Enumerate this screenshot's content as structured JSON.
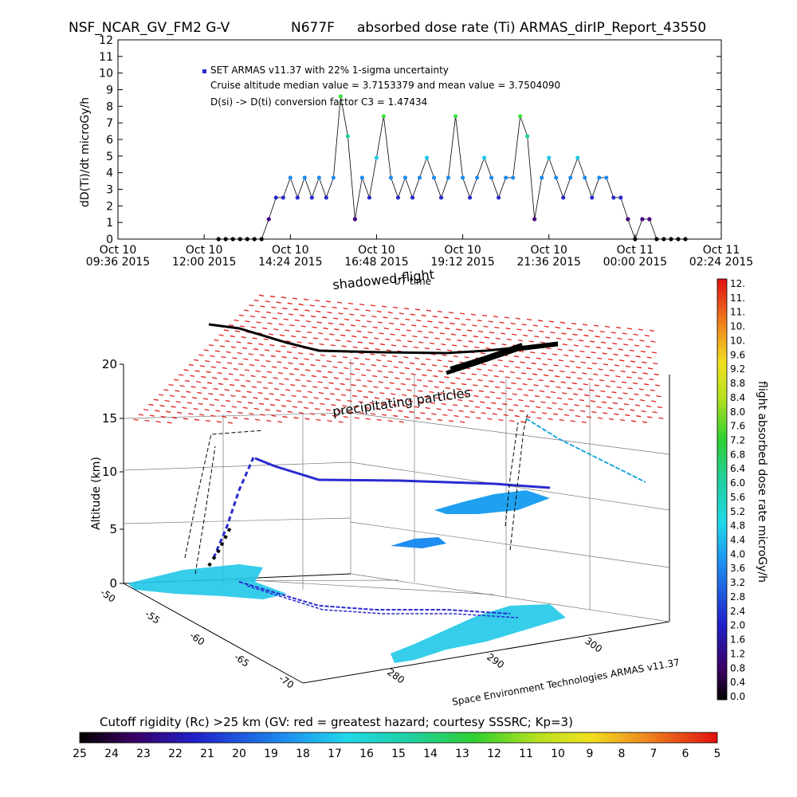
{
  "header": {
    "left": "NSF_NCAR_GV_FM2 G-V",
    "aircraft": "N677F",
    "center": "absorbed dose rate (Ti) ARMAS_dirIP_Report_43550"
  },
  "chart_data": [
    {
      "type": "scatter",
      "name": "dose-rate-timeseries",
      "ylabel": "dD(Ti)/dt microGy/h",
      "xlabel": "UT time",
      "ylim": [
        0,
        12
      ],
      "yticks": [
        "0",
        "1",
        "2",
        "3",
        "4",
        "5",
        "6",
        "7",
        "8",
        "9",
        "10",
        "11",
        "12"
      ],
      "xticks": [
        {
          "d": "Oct 10",
          "t": "09:36 2015"
        },
        {
          "d": "Oct 10",
          "t": "12:00 2015"
        },
        {
          "d": "Oct 10",
          "t": "14:24 2015"
        },
        {
          "d": "Oct 10",
          "t": "16:48 2015"
        },
        {
          "d": "Oct 10",
          "t": "19:12 2015"
        },
        {
          "d": "Oct 10",
          "t": "21:36 2015"
        },
        {
          "d": "Oct 11",
          "t": "00:00 2015"
        },
        {
          "d": "Oct 11",
          "t": "02:24 2015"
        }
      ],
      "legend": "SET ARMAS v11.37 with 22% 1-sigma uncertainty",
      "annotations": [
        "Cruise altitude median value = 3.7153379 and mean value = 3.7504090",
        "D(si) -> D(ti) conversion factor C3 = 1.47434"
      ],
      "x_hours_from_start": [
        2.8,
        3.0,
        3.2,
        3.4,
        3.6,
        3.8,
        4.0,
        4.2,
        4.4,
        4.6,
        4.8,
        5.0,
        5.2,
        5.4,
        5.6,
        5.8,
        6.0,
        6.2,
        6.4,
        6.6,
        6.8,
        7.0,
        7.2,
        7.4,
        7.6,
        7.8,
        8.0,
        8.2,
        8.4,
        8.6,
        8.8,
        9.0,
        9.2,
        9.4,
        9.6,
        9.8,
        10.0,
        10.2,
        10.4,
        10.6,
        10.8,
        11.0,
        11.2,
        11.4,
        11.6,
        11.8,
        12.0,
        12.2,
        12.4,
        12.6,
        12.8,
        13.0,
        13.2,
        13.4,
        13.6,
        13.8,
        14.0,
        14.2,
        14.4,
        14.6,
        14.8,
        15.0,
        15.2,
        15.4,
        15.6,
        15.8
      ],
      "values": [
        0,
        0,
        0,
        0,
        0,
        0,
        0,
        1.2,
        2.5,
        2.5,
        3.7,
        2.5,
        3.7,
        2.5,
        3.7,
        2.5,
        3.7,
        8.6,
        6.2,
        1.2,
        3.7,
        2.5,
        4.9,
        7.4,
        3.7,
        2.5,
        3.7,
        2.5,
        3.7,
        4.9,
        3.7,
        2.5,
        3.7,
        7.4,
        3.7,
        2.5,
        3.7,
        4.9,
        3.7,
        2.5,
        3.7,
        3.7,
        7.4,
        6.2,
        1.2,
        3.7,
        4.9,
        3.7,
        2.5,
        3.7,
        4.9,
        3.7,
        2.5,
        3.7,
        3.7,
        2.5,
        2.5,
        1.2,
        0,
        1.2,
        1.2,
        0,
        0,
        0,
        0,
        0
      ]
    },
    {
      "type": "3d-trajectory",
      "name": "flight-track-3d",
      "zlabel": "Altitude (km)",
      "zticks": [
        "0",
        "5",
        "10",
        "15",
        "20"
      ],
      "lat_ticks": [
        "-50",
        "-55",
        "-60",
        "-65",
        "-70"
      ],
      "lon_ticks": [
        "280",
        "290",
        "300"
      ],
      "overlay_labels": [
        "shadowed-flight",
        "precipitating particles"
      ],
      "credit": "Space Environment Technologies ARMAS v11.37",
      "colorbar": {
        "title": "flight absorbed dose rate microGy/h",
        "ticks": [
          "12.",
          "11.",
          "11.",
          "10.",
          "10.",
          "9.6",
          "9.2",
          "8.8",
          "8.4",
          "8.0",
          "7.6",
          "7.2",
          "6.8",
          "6.4",
          "6.0",
          "5.6",
          "5.2",
          "4.8",
          "4.4",
          "4.0",
          "3.6",
          "3.2",
          "2.8",
          "2.4",
          "2.0",
          "1.6",
          "1.2",
          "0.8",
          "0.4",
          "0.0"
        ]
      }
    },
    {
      "type": "colorbar",
      "name": "cutoff-rigidity-bar",
      "title": "Cutoff rigidity (Rc) >25 km (GV: red = greatest hazard; courtesy SSSRC; Kp=3)",
      "ticks": [
        "25",
        "24",
        "23",
        "22",
        "21",
        "20",
        "19",
        "18",
        "17",
        "16",
        "15",
        "14",
        "13",
        "12",
        "11",
        "10",
        "9",
        "8",
        "7",
        "6",
        "5"
      ]
    }
  ],
  "colors": {
    "hazard": "#e02020",
    "track": "#000000",
    "low": "#2a2ad0",
    "mid": "#20c8e8",
    "high": "#40e040"
  }
}
